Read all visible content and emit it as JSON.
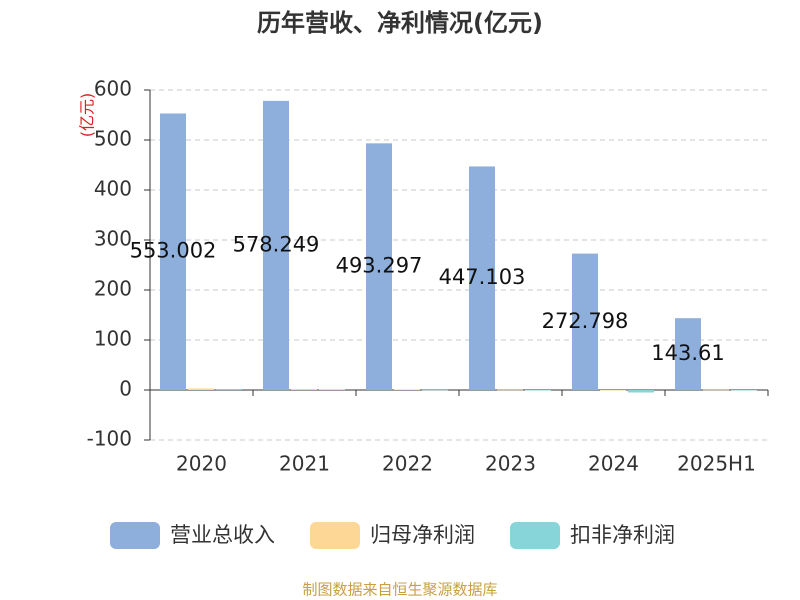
{
  "chart_data": {
    "type": "bar",
    "title": "历年营收、净利情况(亿元)",
    "y_label": "(亿元)",
    "source": "制图数据来自恒生聚源数据库",
    "categories": [
      "2020",
      "2021",
      "2022",
      "2023",
      "2024",
      "2025H1"
    ],
    "series": [
      {
        "name": "营业总收入",
        "color": "#8eaedb",
        "values": [
          553.002,
          578.249,
          493.297,
          447.103,
          272.798,
          143.61
        ],
        "show_labels": true
      },
      {
        "name": "归母净利润",
        "color": "#fdd795",
        "values": [
          3,
          2,
          1,
          0.5,
          -1,
          0.5
        ]
      },
      {
        "name": "扣非净利润",
        "color": "#87d5d8",
        "values": [
          2,
          1,
          0.3,
          -1,
          -5,
          -1
        ]
      }
    ],
    "ylim": [
      -100,
      600
    ],
    "yticks": [
      -100,
      0,
      100,
      200,
      300,
      400,
      500,
      600
    ],
    "grid": true
  }
}
